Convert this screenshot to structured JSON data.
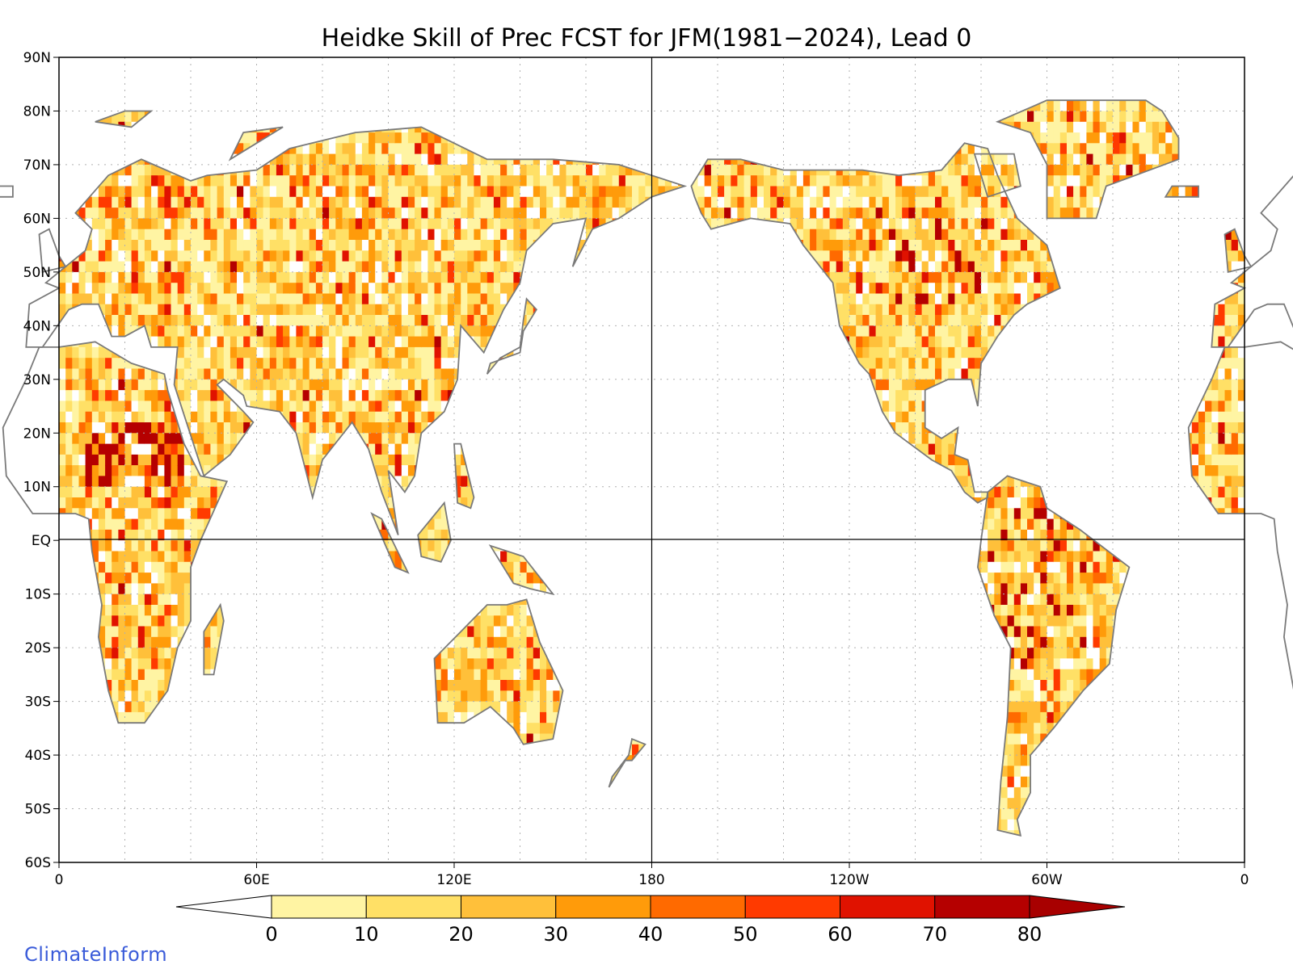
{
  "title": "Heidke Skill of Prec FCST for JFM(1981−2024), Lead 0",
  "credit": "ClimateInform",
  "lat_labels": [
    "90N",
    "80N",
    "70N",
    "60N",
    "50N",
    "40N",
    "30N",
    "20N",
    "10N",
    "EQ",
    "10S",
    "20S",
    "30S",
    "40S",
    "50S",
    "60S"
  ],
  "lon_labels": [
    "0",
    "60E",
    "120E",
    "180",
    "120W",
    "60W",
    "0"
  ],
  "colorbar": {
    "labels": [
      "0",
      "10",
      "20",
      "30",
      "40",
      "50",
      "60",
      "70",
      "80"
    ],
    "colors": [
      "#fff4a3",
      "#ffe066",
      "#ffc03a",
      "#ff9b0a",
      "#ff6a00",
      "#ff3a00",
      "#e01200",
      "#b50000"
    ],
    "under_color": "#ffffff",
    "over_color": "#a80000"
  },
  "colors": {
    "coast": "#7a7a7a",
    "state": "#000000",
    "grid": "#b0b0b0"
  }
}
